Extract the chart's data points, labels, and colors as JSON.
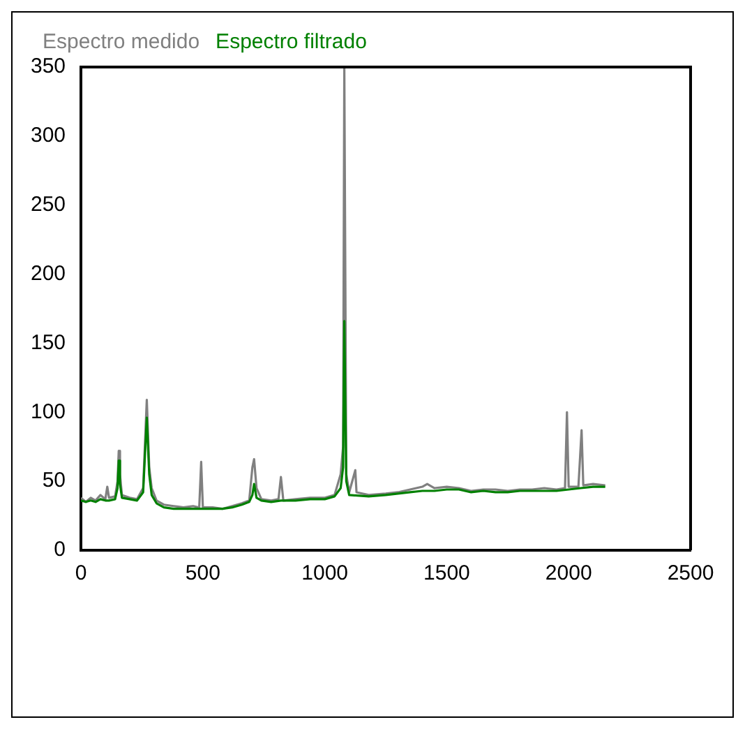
{
  "chart_data": {
    "type": "line",
    "xlim": [
      0,
      2500
    ],
    "ylim": [
      0,
      350
    ],
    "xticks": [
      0,
      500,
      1000,
      1500,
      2000,
      2500
    ],
    "yticks": [
      0,
      50,
      100,
      150,
      200,
      250,
      300,
      350
    ],
    "grid": false,
    "legend": "top left",
    "marker": "none",
    "line_style": "solid",
    "series": [
      {
        "name": "Espectro medido",
        "color": "#808080",
        "x": [
          0,
          20,
          40,
          60,
          80,
          100,
          108,
          115,
          140,
          150,
          155,
          160,
          168,
          200,
          230,
          255,
          270,
          280,
          290,
          310,
          340,
          380,
          420,
          460,
          485,
          493,
          500,
          540,
          580,
          620,
          660,
          690,
          703,
          710,
          720,
          740,
          780,
          810,
          820,
          830,
          880,
          940,
          1000,
          1040,
          1065,
          1075,
          1080,
          1088,
          1100,
          1125,
          1130,
          1180,
          1250,
          1300,
          1350,
          1400,
          1420,
          1450,
          1500,
          1550,
          1600,
          1650,
          1700,
          1750,
          1800,
          1850,
          1900,
          1950,
          1985,
          1993,
          2000,
          2040,
          2053,
          2060,
          2100,
          2150
        ],
        "values": [
          38,
          35,
          38,
          36,
          40,
          37,
          46,
          38,
          39,
          50,
          72,
          55,
          40,
          38,
          37,
          45,
          109,
          60,
          45,
          36,
          33,
          32,
          31,
          32,
          31,
          64,
          31,
          31,
          30,
          32,
          34,
          36,
          60,
          66,
          45,
          37,
          36,
          37,
          53,
          36,
          37,
          38,
          38,
          40,
          55,
          75,
          350,
          55,
          42,
          58,
          42,
          40,
          41,
          42,
          44,
          46,
          48,
          45,
          46,
          45,
          43,
          44,
          44,
          43,
          44,
          44,
          45,
          44,
          45,
          100,
          46,
          46,
          87,
          47,
          48,
          47
        ]
      },
      {
        "name": "Espectro filtrado",
        "color": "#008000",
        "x": [
          0,
          20,
          40,
          60,
          80,
          100,
          115,
          140,
          150,
          155,
          160,
          168,
          200,
          230,
          255,
          270,
          280,
          290,
          310,
          340,
          380,
          420,
          460,
          500,
          540,
          580,
          620,
          660,
          690,
          703,
          710,
          720,
          740,
          780,
          820,
          880,
          940,
          1000,
          1040,
          1065,
          1075,
          1080,
          1088,
          1100,
          1180,
          1250,
          1300,
          1350,
          1400,
          1450,
          1500,
          1550,
          1600,
          1650,
          1700,
          1750,
          1800,
          1850,
          1900,
          1950,
          2000,
          2050,
          2100,
          2150
        ],
        "values": [
          36,
          35,
          36,
          35,
          37,
          36,
          36,
          37,
          45,
          65,
          48,
          38,
          37,
          36,
          42,
          96,
          55,
          40,
          34,
          31,
          30,
          30,
          30,
          30,
          30,
          30,
          31,
          33,
          35,
          40,
          48,
          38,
          36,
          35,
          36,
          36,
          37,
          37,
          39,
          45,
          60,
          166,
          50,
          40,
          39,
          40,
          41,
          42,
          43,
          43,
          44,
          44,
          42,
          43,
          42,
          42,
          43,
          43,
          43,
          43,
          44,
          45,
          46,
          46
        ]
      }
    ]
  }
}
